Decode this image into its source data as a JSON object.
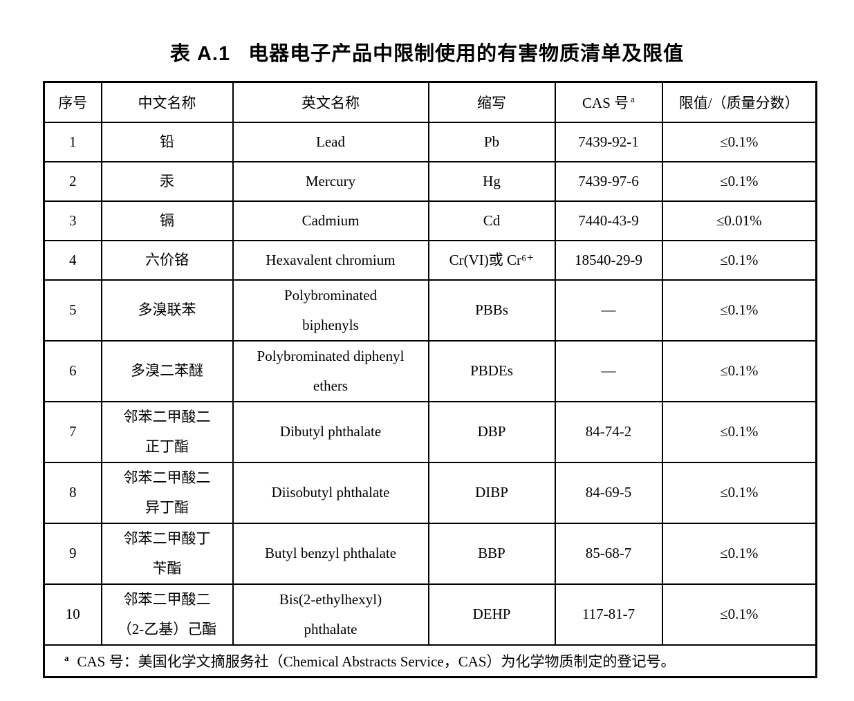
{
  "colors": {
    "background": "#ffffff",
    "text": "#000000",
    "border": "#000000"
  },
  "title": {
    "number": "表 A.1",
    "text": "电器电子产品中限制使用的有害物质清单及限值"
  },
  "table": {
    "headers": [
      "序号",
      "中文名称",
      "英文名称",
      "缩写",
      "CAS 号",
      "限值/（质量分数）"
    ],
    "cas_note_marker": "a",
    "rows": [
      {
        "no": "1",
        "cn": "铅",
        "en": "Lead",
        "abbr": "Pb",
        "cas": "7439-92-1",
        "limit": "≤0.1%"
      },
      {
        "no": "2",
        "cn": "汞",
        "en": "Mercury",
        "abbr": "Hg",
        "cas": "7439-97-6",
        "limit": "≤0.1%"
      },
      {
        "no": "3",
        "cn": "镉",
        "en": "Cadmium",
        "abbr": "Cd",
        "cas": "7440-43-9",
        "limit": "≤0.01%"
      },
      {
        "no": "4",
        "cn": "六价铬",
        "en": "Hexavalent chromium",
        "abbr": "Cr(VI)或 Cr⁶⁺",
        "cas": "18540-29-9",
        "limit": "≤0.1%"
      },
      {
        "no": "5",
        "cn": "多溴联苯",
        "en": "Polybrominated\nbiphenyls",
        "abbr": "PBBs",
        "cas": "—",
        "limit": "≤0.1%"
      },
      {
        "no": "6",
        "cn": "多溴二苯醚",
        "en": "Polybrominated diphenyl\nethers",
        "abbr": "PBDEs",
        "cas": "—",
        "limit": "≤0.1%"
      },
      {
        "no": "7",
        "cn": "邻苯二甲酸二\n正丁酯",
        "en": "Dibutyl phthalate",
        "abbr": "DBP",
        "cas": "84-74-2",
        "limit": "≤0.1%"
      },
      {
        "no": "8",
        "cn": "邻苯二甲酸二\n异丁酯",
        "en": "Diisobutyl phthalate",
        "abbr": "DIBP",
        "cas": "84-69-5",
        "limit": "≤0.1%"
      },
      {
        "no": "9",
        "cn": "邻苯二甲酸丁\n苄酯",
        "en": "Butyl benzyl phthalate",
        "abbr": "BBP",
        "cas": "85-68-7",
        "limit": "≤0.1%"
      },
      {
        "no": "10",
        "cn": "邻苯二甲酸二\n（2-乙基）己酯",
        "en": "Bis(2-ethylhexyl)\nphthalate",
        "abbr": "DEHP",
        "cas": "117-81-7",
        "limit": "≤0.1%"
      }
    ],
    "footnote": {
      "marker": "a",
      "text": "CAS 号：美国化学文摘服务社（Chemical Abstracts Service，CAS）为化学物质制定的登记号。"
    }
  }
}
